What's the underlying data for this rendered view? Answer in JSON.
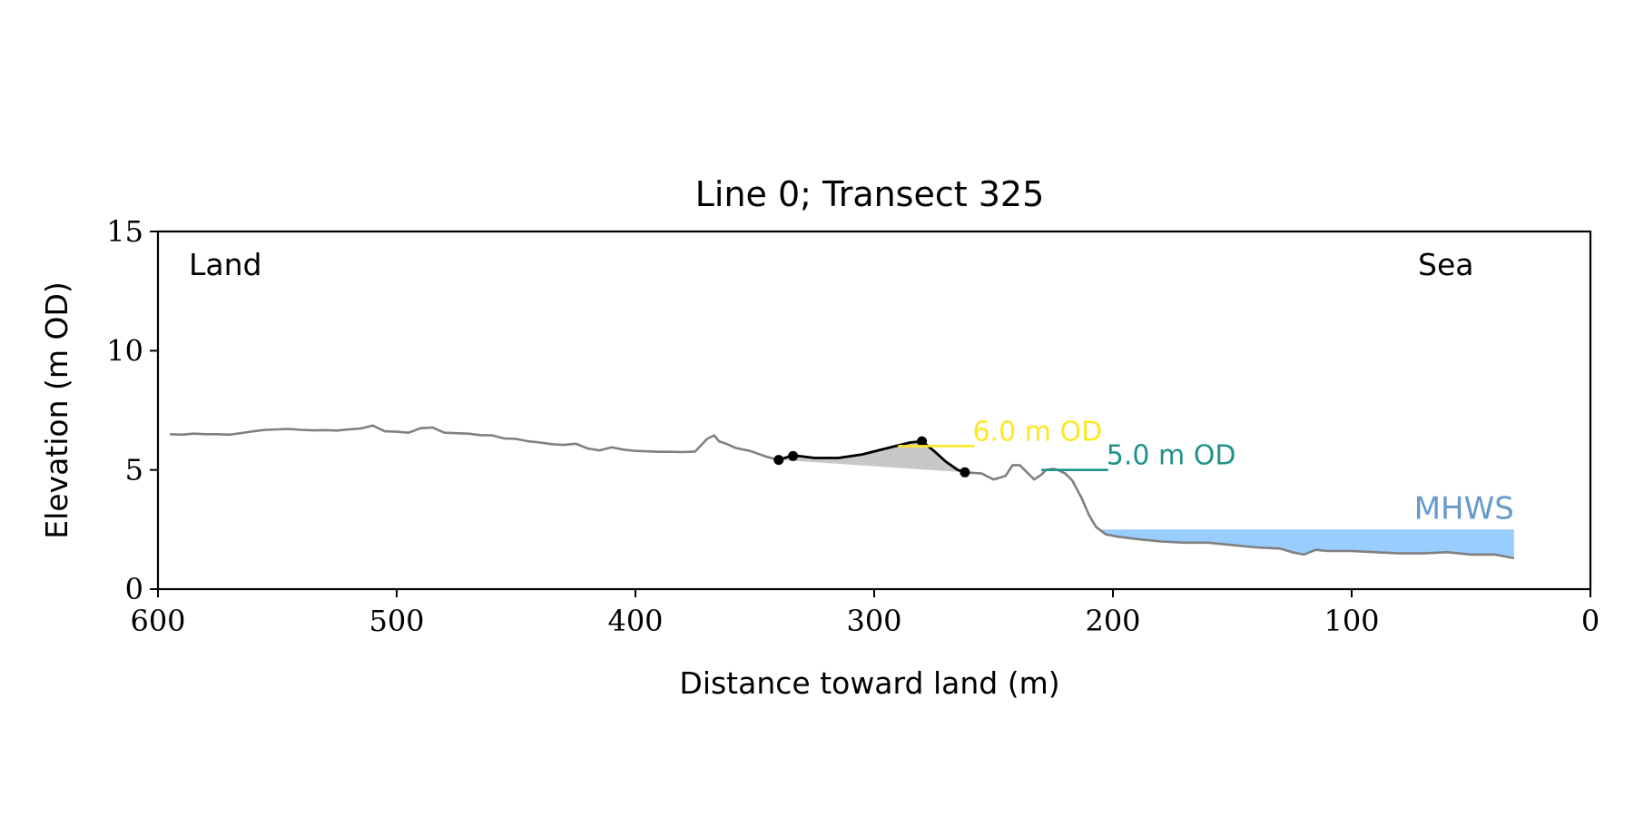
{
  "chart_data": {
    "type": "line",
    "title": "Line 0; Transect 325",
    "xlabel": "Distance toward land (m)",
    "ylabel": "Elevation (m OD)",
    "xlim": [
      600,
      0
    ],
    "ylim": [
      0,
      15
    ],
    "xticks": [
      600,
      500,
      400,
      300,
      200,
      100,
      0
    ],
    "yticks": [
      0,
      5,
      10,
      15
    ],
    "grid": false,
    "annotations": {
      "land_label": "Land",
      "sea_label": "Sea"
    },
    "colors": {
      "profile": "#808080",
      "dune": "#000000",
      "dune_fill": "#c8c8c8",
      "level_6m": "#fde725",
      "level_5m": "#21918c",
      "mhws": "#99ccff",
      "mhws_label": "#6699cc"
    },
    "profile": {
      "x": [
        595,
        590,
        585,
        580,
        575,
        570,
        565,
        560,
        555,
        550,
        545,
        540,
        535,
        530,
        525,
        520,
        515,
        510,
        505,
        500,
        495,
        490,
        485,
        480,
        475,
        470,
        465,
        460,
        455,
        450,
        445,
        440,
        435,
        430,
        425,
        420,
        415,
        410,
        405,
        400,
        395,
        390,
        385,
        380,
        375,
        370,
        367,
        365,
        362,
        358,
        352,
        345,
        340,
        336,
        333,
        325,
        315,
        305,
        295,
        285,
        280,
        275,
        270,
        265,
        262,
        255,
        250,
        245,
        242,
        239,
        236,
        233,
        230,
        228,
        225,
        223,
        220,
        217,
        213,
        210,
        207,
        203,
        198,
        190,
        180,
        170,
        160,
        150,
        140,
        130,
        125,
        120,
        115,
        110,
        100,
        90,
        80,
        70,
        60,
        50,
        40,
        32
      ],
      "y": [
        6.5,
        6.48,
        6.52,
        6.5,
        6.5,
        6.48,
        6.55,
        6.62,
        6.68,
        6.7,
        6.72,
        6.68,
        6.66,
        6.67,
        6.65,
        6.7,
        6.74,
        6.86,
        6.62,
        6.6,
        6.56,
        6.75,
        6.78,
        6.56,
        6.54,
        6.52,
        6.46,
        6.45,
        6.32,
        6.3,
        6.2,
        6.15,
        6.08,
        6.05,
        6.1,
        5.9,
        5.82,
        5.95,
        5.85,
        5.8,
        5.78,
        5.76,
        5.76,
        5.75,
        5.77,
        6.3,
        6.45,
        6.2,
        6.1,
        5.92,
        5.8,
        5.55,
        5.42,
        5.55,
        5.6,
        5.5,
        5.5,
        5.65,
        5.9,
        6.15,
        6.2,
        5.8,
        5.35,
        5.0,
        4.9,
        4.85,
        4.6,
        4.75,
        5.2,
        5.2,
        4.9,
        4.6,
        4.8,
        5.0,
        5.05,
        5.0,
        4.85,
        4.55,
        3.8,
        3.1,
        2.6,
        2.3,
        2.2,
        2.1,
        2.0,
        1.95,
        1.95,
        1.85,
        1.75,
        1.7,
        1.55,
        1.45,
        1.65,
        1.6,
        1.6,
        1.55,
        1.5,
        1.5,
        1.55,
        1.45,
        1.45,
        1.3
      ]
    },
    "dune": {
      "x": [
        340,
        336,
        333,
        325,
        315,
        305,
        295,
        285,
        280,
        275,
        270,
        265,
        262
      ],
      "y": [
        5.42,
        5.55,
        5.6,
        5.5,
        5.5,
        5.65,
        5.9,
        6.15,
        6.2,
        5.8,
        5.35,
        5.0,
        4.9
      ],
      "points": [
        {
          "x": 340,
          "y": 5.42
        },
        {
          "x": 334,
          "y": 5.58
        },
        {
          "x": 280,
          "y": 6.2
        },
        {
          "x": 262,
          "y": 4.9
        }
      ]
    },
    "levels": [
      {
        "label": "6.0 m OD",
        "y": 6.0,
        "x_from": 290,
        "x_to": 258
      },
      {
        "label": "5.0 m OD",
        "y": 5.0,
        "x_from": 230,
        "x_to": 202
      }
    ],
    "mhws": {
      "label": "MHWS",
      "y": 2.5,
      "x_from": 205,
      "x_to": 32
    }
  }
}
